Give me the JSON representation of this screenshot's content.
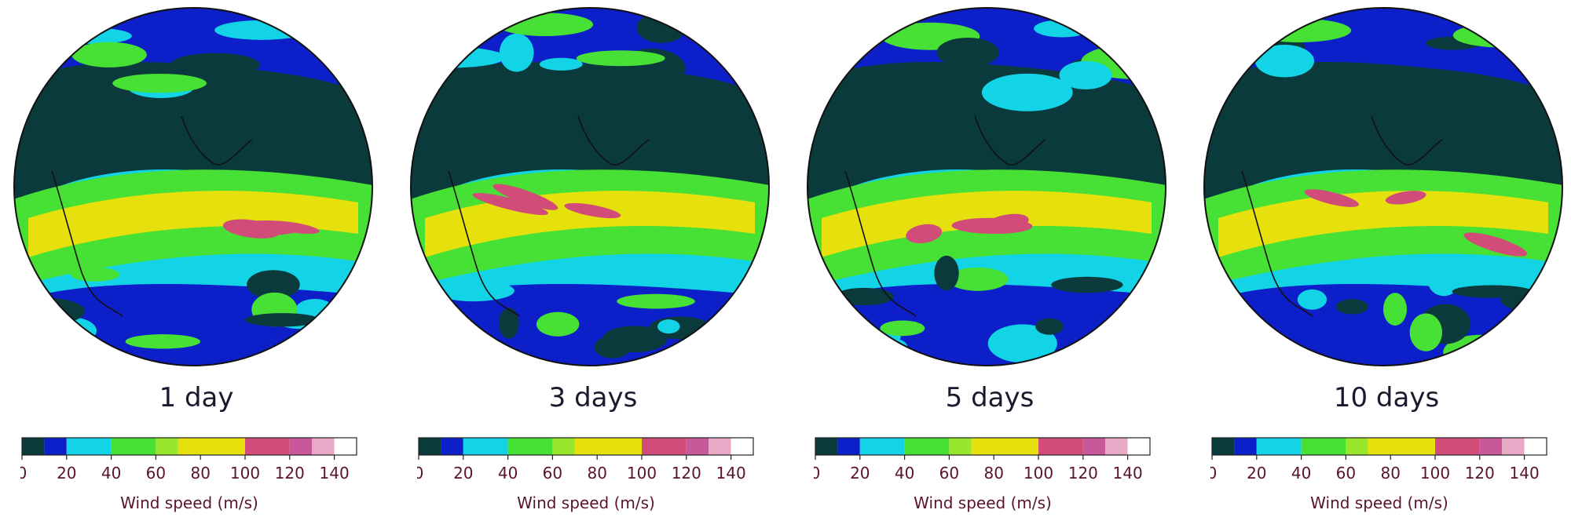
{
  "colors": {
    "bins": [
      "#0b3a3c",
      "#0d1fc8",
      "#12d4e6",
      "#47e034",
      "#9ae62c",
      "#e6e10c",
      "#d24c79",
      "#c9589a",
      "#e8a9c6",
      "#ffffff"
    ],
    "label_color": "#5a1428"
  },
  "colorbar": {
    "ticks": [
      "0",
      "20",
      "40",
      "60",
      "80",
      "100",
      "120",
      "140"
    ],
    "bounds": [
      0,
      10,
      20,
      40,
      60,
      70,
      100,
      120,
      130,
      140,
      150
    ],
    "vmax": 150,
    "title": "Wind speed (m/s)"
  },
  "panels": [
    {
      "caption": "1 day",
      "seed": 1
    },
    {
      "caption": "3 days",
      "seed": 3
    },
    {
      "caption": "5 days",
      "seed": 5
    },
    {
      "caption": "10 days",
      "seed": 10
    }
  ]
}
